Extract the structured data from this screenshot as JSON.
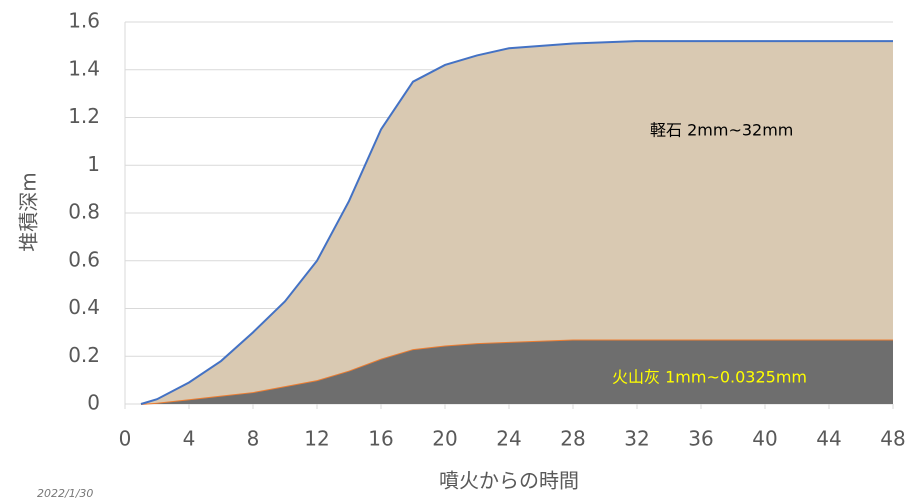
{
  "chart_data": {
    "type": "stacked_area",
    "x_label": "噴火からの時間",
    "y_label": "堆積深m",
    "date": "2022/1/30",
    "annotations": [
      {
        "text": "軽石 2mm~32mm",
        "color": "#000000"
      },
      {
        "text": "火山灰 1mm~0.0325mm",
        "color": "#ffff00"
      }
    ],
    "x": [
      1,
      2,
      4,
      6,
      8,
      10,
      12,
      14,
      16,
      18,
      20,
      22,
      24,
      28,
      32,
      36,
      40,
      44,
      48
    ],
    "series": [
      {
        "color": "#6e6e6e",
        "edge_color": "#ed7d31",
        "values": [
          0,
          0.005,
          0.02,
          0.035,
          0.05,
          0.075,
          0.1,
          0.14,
          0.19,
          0.23,
          0.245,
          0.255,
          0.26,
          0.27,
          0.27,
          0.27,
          0.27,
          0.27,
          0.27
        ]
      },
      {
        "color": "#d9c9b2",
        "edge_color": "#4472c4",
        "values": [
          0,
          0.015,
          0.07,
          0.145,
          0.25,
          0.355,
          0.5,
          0.71,
          0.96,
          1.12,
          1.175,
          1.205,
          1.23,
          1.24,
          1.25,
          1.25,
          1.25,
          1.25,
          1.25
        ]
      }
    ],
    "xlim": [
      0,
      48
    ],
    "xticks": [
      0,
      4,
      8,
      12,
      16,
      20,
      24,
      28,
      32,
      36,
      40,
      44,
      48
    ],
    "ylim": [
      0,
      1.6
    ],
    "yticks": [
      0,
      0.2,
      0.4,
      0.6,
      0.8,
      1,
      1.2,
      1.4,
      1.6
    ],
    "grid": true
  }
}
